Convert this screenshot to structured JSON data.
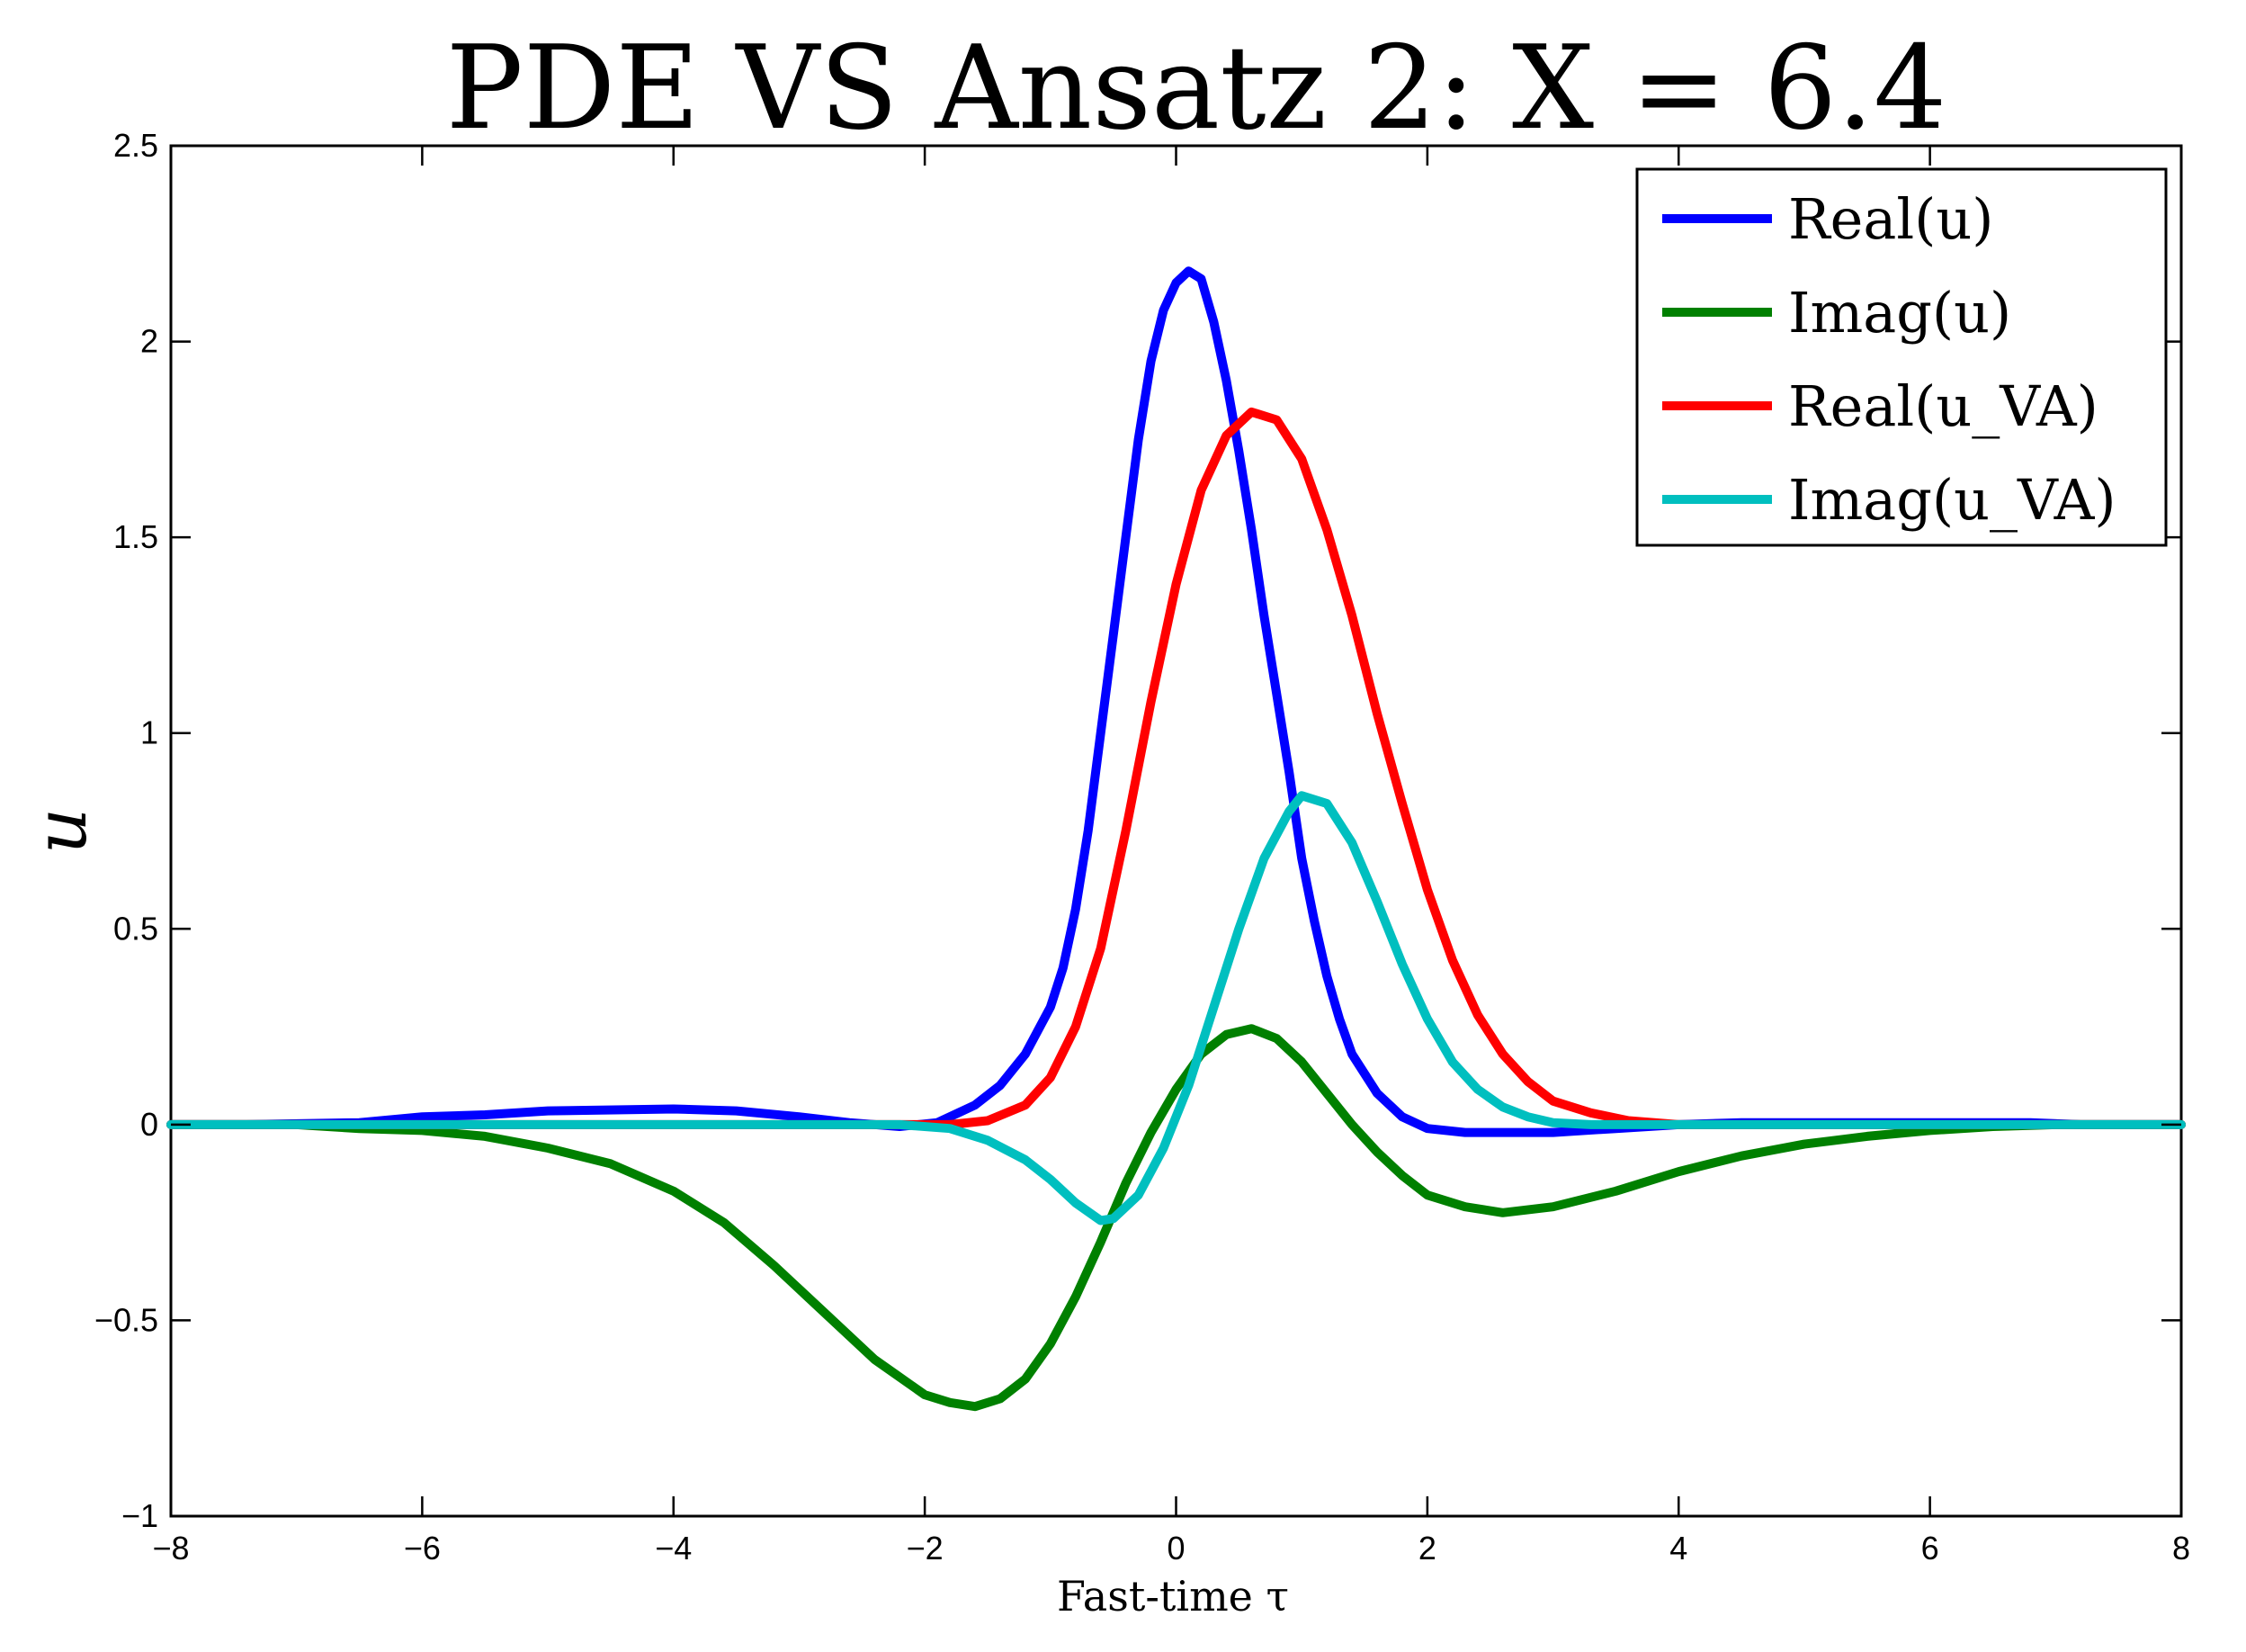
{
  "chart_data": {
    "type": "line",
    "title": "PDE VS Ansatz 2: X = 6.4",
    "xlabel": "Fast-time τ",
    "ylabel": "u",
    "xlim": [
      -8,
      8
    ],
    "ylim": [
      -1,
      2.5
    ],
    "xticks": [
      -8,
      -6,
      -4,
      -2,
      0,
      2,
      4,
      6,
      8
    ],
    "yticks": [
      -1,
      -0.5,
      0,
      0.5,
      1,
      1.5,
      2,
      2.5
    ],
    "xtick_labels": [
      "−8",
      "−6",
      "−4",
      "−2",
      "0",
      "2",
      "4",
      "6",
      "8"
    ],
    "ytick_labels": [
      "−1",
      "−0.5",
      "0",
      "0.5",
      "1",
      "1.5",
      "2",
      "2.5"
    ],
    "grid": false,
    "legend_position": "top-right",
    "series": [
      {
        "name": "Real(u)",
        "color": "#0000ff",
        "points": [
          [
            -8,
            0
          ],
          [
            -7.4,
            0
          ],
          [
            -6.5,
            0.005
          ],
          [
            -6,
            0.02
          ],
          [
            -5.5,
            0.025
          ],
          [
            -5,
            0.035
          ],
          [
            -4,
            0.04
          ],
          [
            -3.5,
            0.035
          ],
          [
            -3,
            0.02
          ],
          [
            -2.6,
            0.005
          ],
          [
            -2.2,
            -0.005
          ],
          [
            -1.9,
            0.005
          ],
          [
            -1.6,
            0.05
          ],
          [
            -1.4,
            0.1
          ],
          [
            -1.2,
            0.18
          ],
          [
            -1,
            0.3
          ],
          [
            -0.9,
            0.4
          ],
          [
            -0.8,
            0.55
          ],
          [
            -0.7,
            0.75
          ],
          [
            -0.6,
            1.0
          ],
          [
            -0.5,
            1.25
          ],
          [
            -0.4,
            1.5
          ],
          [
            -0.3,
            1.75
          ],
          [
            -0.2,
            1.95
          ],
          [
            -0.1,
            2.08
          ],
          [
            0,
            2.15
          ],
          [
            0.1,
            2.18
          ],
          [
            0.2,
            2.16
          ],
          [
            0.3,
            2.05
          ],
          [
            0.4,
            1.9
          ],
          [
            0.5,
            1.72
          ],
          [
            0.6,
            1.52
          ],
          [
            0.7,
            1.3
          ],
          [
            0.8,
            1.1
          ],
          [
            0.9,
            0.9
          ],
          [
            1.0,
            0.68
          ],
          [
            1.1,
            0.52
          ],
          [
            1.2,
            0.38
          ],
          [
            1.3,
            0.27
          ],
          [
            1.4,
            0.18
          ],
          [
            1.6,
            0.08
          ],
          [
            1.8,
            0.02
          ],
          [
            2.0,
            -0.01
          ],
          [
            2.3,
            -0.02
          ],
          [
            2.6,
            -0.02
          ],
          [
            3.0,
            -0.02
          ],
          [
            3.5,
            -0.01
          ],
          [
            4.0,
            0.0
          ],
          [
            4.5,
            0.005
          ],
          [
            5,
            0.005
          ],
          [
            6,
            0.005
          ],
          [
            6.8,
            0.005
          ],
          [
            7.2,
            0
          ],
          [
            8,
            0
          ]
        ]
      },
      {
        "name": "Imag(u)",
        "color": "#008000",
        "points": [
          [
            -8,
            0
          ],
          [
            -7,
            0
          ],
          [
            -6.5,
            -0.01
          ],
          [
            -6,
            -0.015
          ],
          [
            -5.5,
            -0.03
          ],
          [
            -5,
            -0.06
          ],
          [
            -4.5,
            -0.1
          ],
          [
            -4,
            -0.17
          ],
          [
            -3.6,
            -0.25
          ],
          [
            -3.2,
            -0.36
          ],
          [
            -2.8,
            -0.48
          ],
          [
            -2.4,
            -0.6
          ],
          [
            -2.0,
            -0.69
          ],
          [
            -1.8,
            -0.71
          ],
          [
            -1.6,
            -0.72
          ],
          [
            -1.4,
            -0.7
          ],
          [
            -1.2,
            -0.65
          ],
          [
            -1.0,
            -0.56
          ],
          [
            -0.8,
            -0.44
          ],
          [
            -0.6,
            -0.3
          ],
          [
            -0.4,
            -0.15
          ],
          [
            -0.2,
            -0.02
          ],
          [
            0,
            0.09
          ],
          [
            0.2,
            0.18
          ],
          [
            0.4,
            0.23
          ],
          [
            0.6,
            0.245
          ],
          [
            0.8,
            0.22
          ],
          [
            1.0,
            0.16
          ],
          [
            1.2,
            0.08
          ],
          [
            1.4,
            0.0
          ],
          [
            1.6,
            -0.07
          ],
          [
            1.8,
            -0.13
          ],
          [
            2.0,
            -0.18
          ],
          [
            2.3,
            -0.21
          ],
          [
            2.6,
            -0.225
          ],
          [
            3.0,
            -0.21
          ],
          [
            3.5,
            -0.17
          ],
          [
            4.0,
            -0.12
          ],
          [
            4.5,
            -0.08
          ],
          [
            5.0,
            -0.05
          ],
          [
            5.5,
            -0.03
          ],
          [
            6.0,
            -0.015
          ],
          [
            6.5,
            -0.005
          ],
          [
            7.0,
            0
          ],
          [
            8,
            0
          ]
        ]
      },
      {
        "name": "Real(u_VA)",
        "color": "#ff0000",
        "points": [
          [
            -8,
            0
          ],
          [
            -2.5,
            0
          ],
          [
            -1.8,
            0.0
          ],
          [
            -1.5,
            0.01
          ],
          [
            -1.2,
            0.05
          ],
          [
            -1.0,
            0.12
          ],
          [
            -0.8,
            0.25
          ],
          [
            -0.6,
            0.45
          ],
          [
            -0.4,
            0.75
          ],
          [
            -0.2,
            1.08
          ],
          [
            0,
            1.38
          ],
          [
            0.2,
            1.62
          ],
          [
            0.4,
            1.76
          ],
          [
            0.6,
            1.82
          ],
          [
            0.8,
            1.8
          ],
          [
            1.0,
            1.7
          ],
          [
            1.2,
            1.52
          ],
          [
            1.4,
            1.3
          ],
          [
            1.6,
            1.05
          ],
          [
            1.8,
            0.82
          ],
          [
            2.0,
            0.6
          ],
          [
            2.2,
            0.42
          ],
          [
            2.4,
            0.28
          ],
          [
            2.6,
            0.18
          ],
          [
            2.8,
            0.11
          ],
          [
            3.0,
            0.06
          ],
          [
            3.3,
            0.03
          ],
          [
            3.6,
            0.01
          ],
          [
            4.0,
            0.0
          ],
          [
            8,
            0
          ]
        ]
      },
      {
        "name": "Imag(u_VA)",
        "color": "#00bfbf",
        "points": [
          [
            -8,
            0
          ],
          [
            -2.2,
            0
          ],
          [
            -1.8,
            -0.01
          ],
          [
            -1.5,
            -0.04
          ],
          [
            -1.2,
            -0.09
          ],
          [
            -1.0,
            -0.14
          ],
          [
            -0.8,
            -0.2
          ],
          [
            -0.6,
            -0.245
          ],
          [
            -0.5,
            -0.24
          ],
          [
            -0.3,
            -0.18
          ],
          [
            -0.1,
            -0.06
          ],
          [
            0.1,
            0.1
          ],
          [
            0.3,
            0.3
          ],
          [
            0.5,
            0.5
          ],
          [
            0.7,
            0.68
          ],
          [
            0.9,
            0.8
          ],
          [
            1.0,
            0.84
          ],
          [
            1.2,
            0.82
          ],
          [
            1.4,
            0.72
          ],
          [
            1.6,
            0.57
          ],
          [
            1.8,
            0.41
          ],
          [
            2.0,
            0.27
          ],
          [
            2.2,
            0.16
          ],
          [
            2.4,
            0.09
          ],
          [
            2.6,
            0.045
          ],
          [
            2.8,
            0.02
          ],
          [
            3.0,
            0.005
          ],
          [
            3.3,
            0
          ],
          [
            8,
            0
          ]
        ]
      }
    ]
  }
}
